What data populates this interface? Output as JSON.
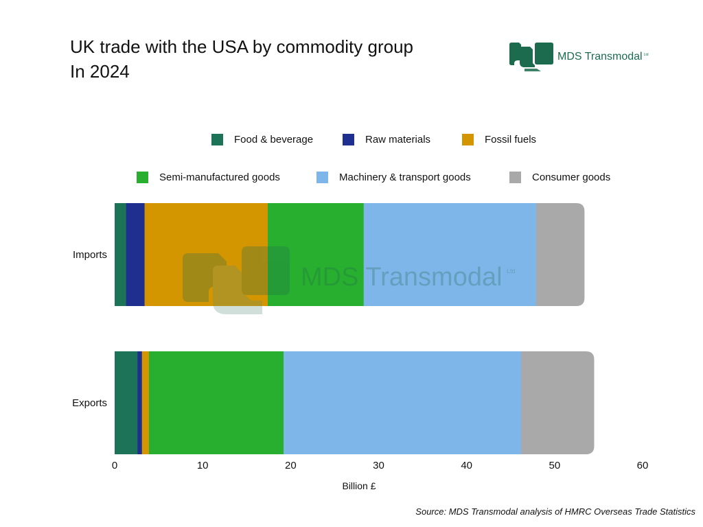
{
  "title_line1": "UK trade with the USA by commodity group",
  "title_line2": "In 2024",
  "logo": {
    "text": "MDS Transmodal",
    "suffix": "Ltd",
    "color": "#1c6b4f"
  },
  "watermark": {
    "text": "MDS Transmodal",
    "suffix": "Ltd"
  },
  "source": "Source: MDS Transmodal analysis of HMRC Overseas Trade Statistics",
  "chart_data": {
    "type": "bar",
    "orientation": "horizontal",
    "stacked": true,
    "categories": [
      "Imports",
      "Exports"
    ],
    "series": [
      {
        "name": "Food & beverage",
        "color": "#1d7357",
        "values": [
          1.3,
          2.6
        ]
      },
      {
        "name": "Raw materials",
        "color": "#1f2f8f",
        "values": [
          2.1,
          0.5
        ]
      },
      {
        "name": "Fossil fuels",
        "color": "#d49600",
        "values": [
          14.0,
          0.8
        ]
      },
      {
        "name": "Semi-manufactured goods",
        "color": "#29af2f",
        "values": [
          10.9,
          15.3
        ]
      },
      {
        "name": "Machinery & transport goods",
        "color": "#7fb6ea",
        "values": [
          19.6,
          27.0
        ]
      },
      {
        "name": "Consumer goods",
        "color": "#a9a9a9",
        "values": [
          5.5,
          8.3
        ]
      }
    ],
    "xlabel": "Billion £",
    "ylabel": "",
    "xlim": [
      0,
      60
    ],
    "xticks": [
      0,
      10,
      20,
      30,
      40,
      50,
      60
    ],
    "grid": false,
    "legend_position": "top"
  }
}
